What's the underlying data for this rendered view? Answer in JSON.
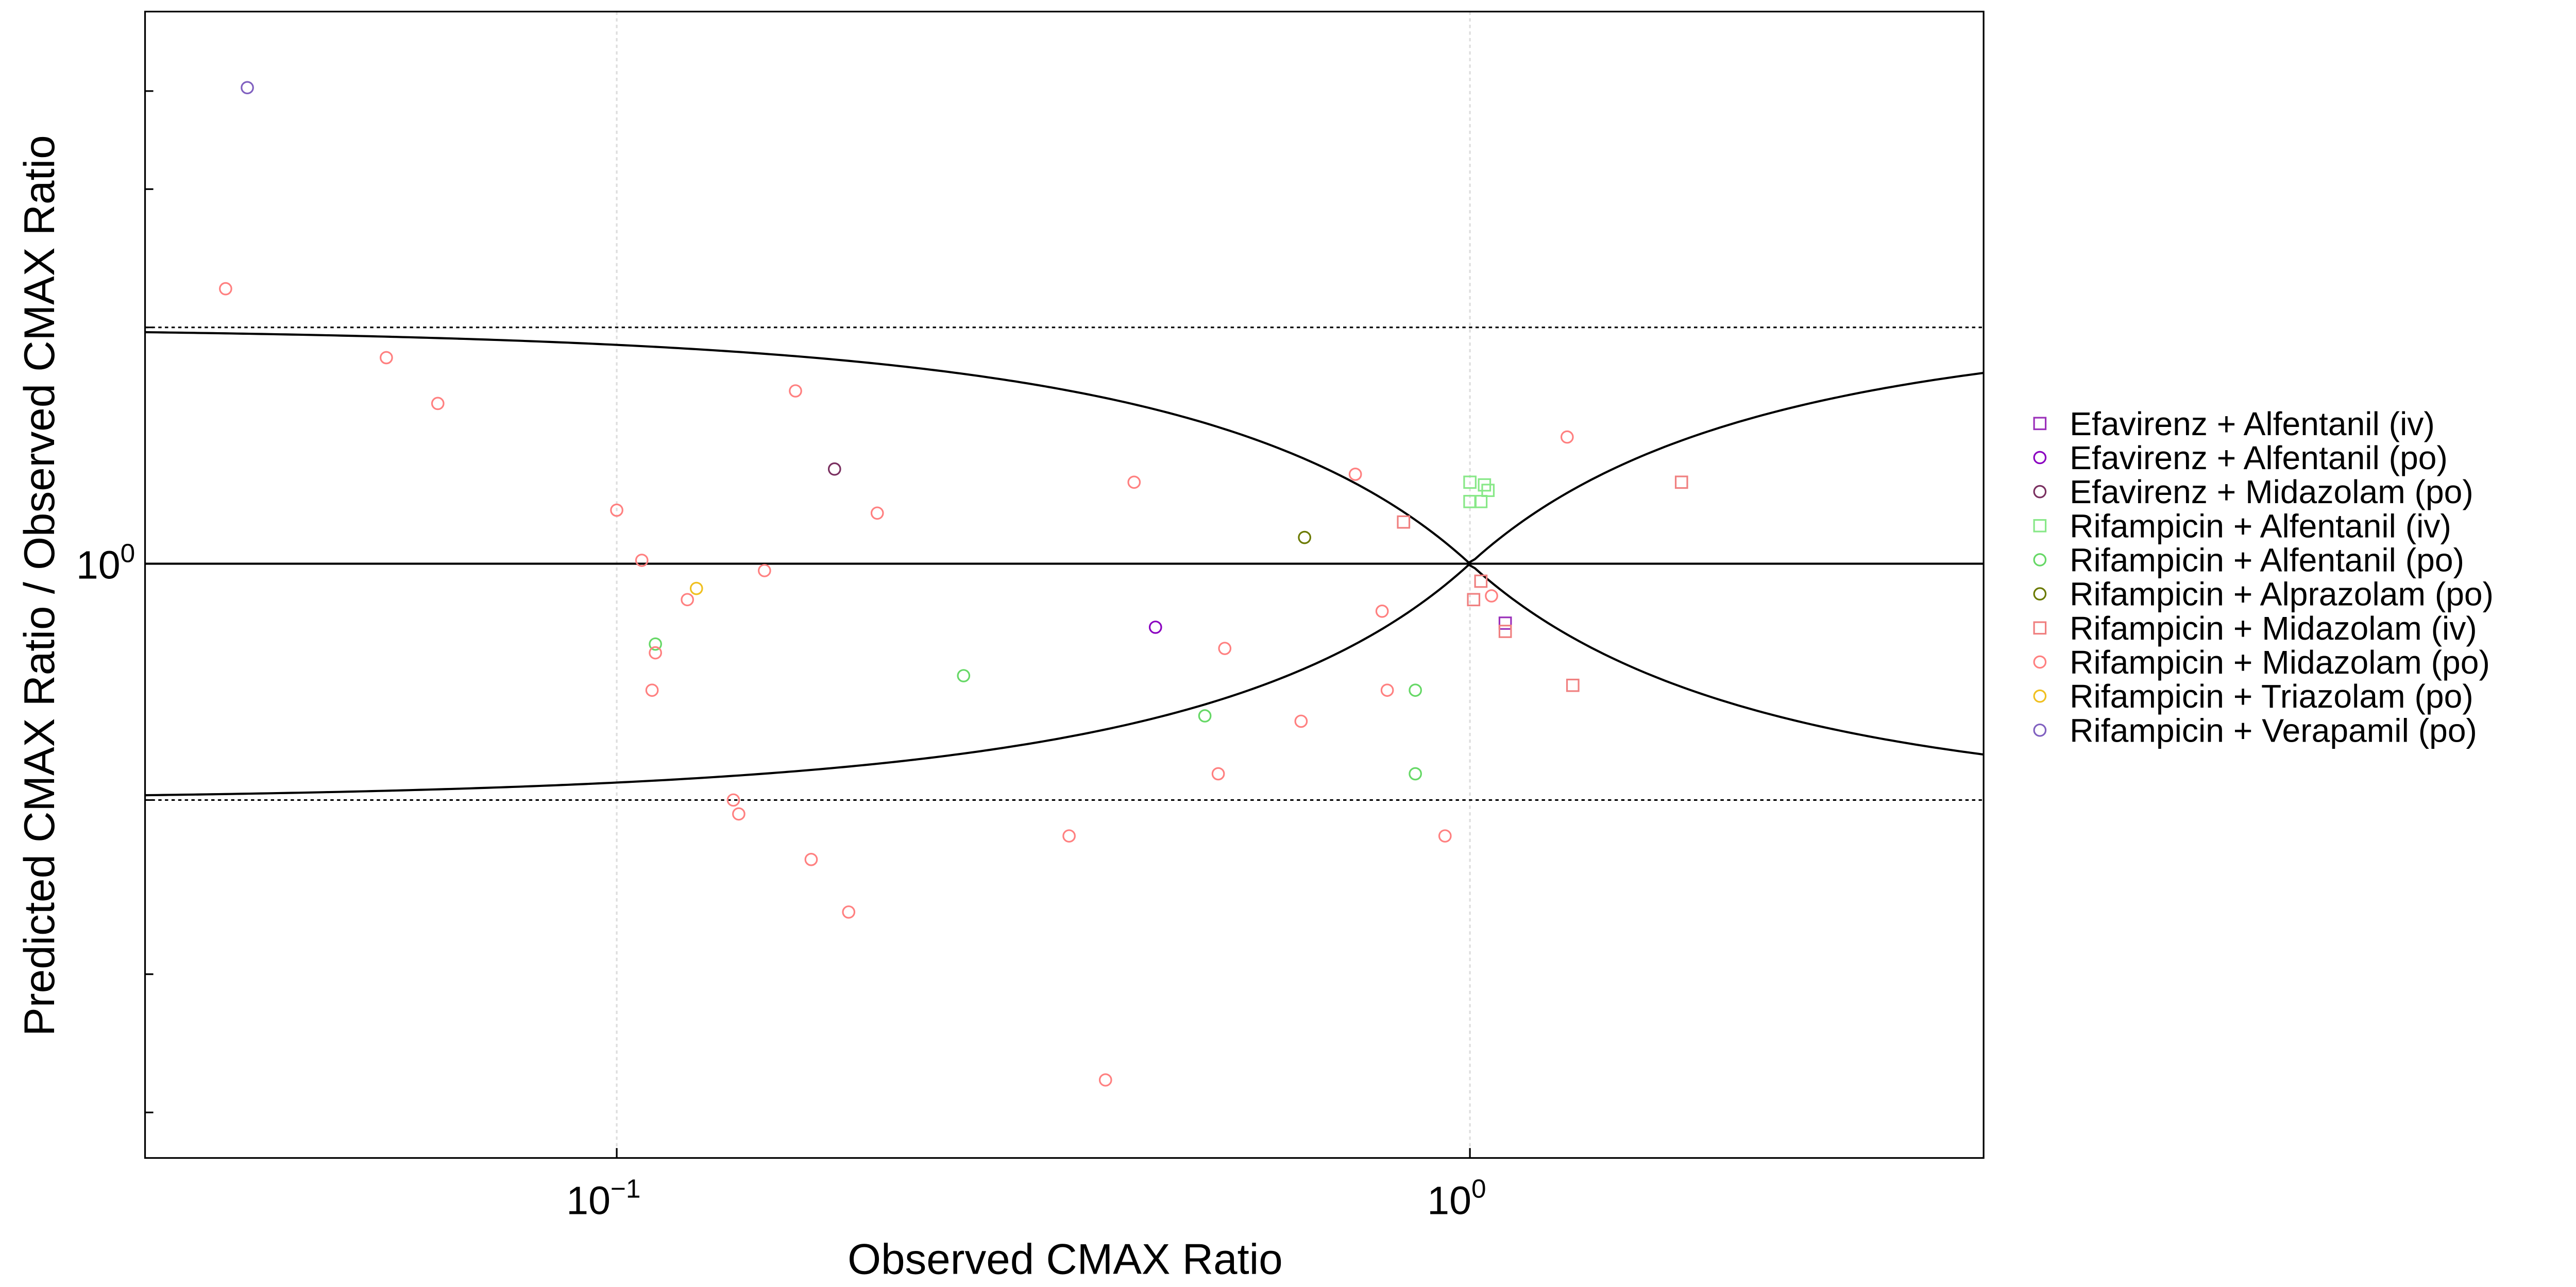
{
  "chart_data": {
    "type": "scatter",
    "x_label": "Observed CMAX Ratio",
    "y_label": "Predicted CMAX Ratio / Observed CMAX Ratio",
    "xscale": "log",
    "yscale": "log",
    "xlim": [
      0.028,
      4
    ],
    "ylim": [
      0.175,
      5.05
    ],
    "xticks": [
      {
        "value": 0.1,
        "label": "10",
        "exponent": "−1"
      },
      {
        "value": 1,
        "label": "10",
        "exponent": "0"
      }
    ],
    "yticks": [
      {
        "value": 1,
        "label": "10",
        "exponent": "0"
      }
    ],
    "y_minor_ticks": [
      0.2,
      0.3,
      0.5,
      2,
      3,
      4
    ],
    "grid": true,
    "hlines": [
      {
        "value": 1,
        "style": "solid"
      },
      {
        "value": 2,
        "style": "dotted"
      },
      {
        "value": 0.5,
        "style": "dotted"
      }
    ],
    "guest_delta": 1,
    "legend": "right",
    "series": [
      {
        "name": "Efavirenz + Alfentanil (iv)",
        "color": "#9b30ba",
        "marker": "square",
        "x": [
          1.1
        ],
        "values": [
          0.84
        ]
      },
      {
        "name": "Efavirenz + Alfentanil (po)",
        "color": "#8a00c0",
        "marker": "circle",
        "x": [
          0.428
        ],
        "values": [
          0.83
        ]
      },
      {
        "name": "Efavirenz + Midazolam (po)",
        "color": "#7a3060",
        "marker": "circle",
        "x": [
          0.18
        ],
        "values": [
          1.32
        ]
      },
      {
        "name": "Rifampicin + Alfentanil (iv)",
        "color": "#88e888",
        "marker": "square",
        "x": [
          1.0,
          1.04,
          1.05,
          1.0,
          1.03
        ],
        "values": [
          1.27,
          1.26,
          1.24,
          1.2,
          1.2
        ]
      },
      {
        "name": "Rifampicin + Alfentanil (po)",
        "color": "#66d866",
        "marker": "circle",
        "x": [
          0.111,
          0.255,
          0.489,
          0.863,
          0.863
        ],
        "values": [
          0.79,
          0.72,
          0.64,
          0.69,
          0.54
        ]
      },
      {
        "name": "Rifampicin + Alprazolam (po)",
        "color": "#6b7a00",
        "marker": "circle",
        "x": [
          0.64
        ],
        "values": [
          1.08
        ]
      },
      {
        "name": "Rifampicin + Midazolam (iv)",
        "color": "#f08080",
        "marker": "square",
        "x": [
          0.836,
          1.01,
          1.03,
          1.1,
          1.32,
          1.77
        ],
        "values": [
          1.13,
          0.9,
          0.95,
          0.82,
          0.7,
          1.27
        ]
      },
      {
        "name": "Rifampicin + Midazolam (po)",
        "color": "#ff8080",
        "marker": "circle",
        "x": [
          0.0348,
          0.0537,
          0.0617,
          0.162,
          0.1,
          0.107,
          0.121,
          0.111,
          0.11,
          0.149,
          0.202,
          0.137,
          0.139,
          0.169,
          0.187,
          0.339,
          0.374,
          0.404,
          0.516,
          0.507,
          0.634,
          0.734,
          0.789,
          0.8,
          0.935,
          1.06,
          1.3
        ],
        "values": [
          2.24,
          1.83,
          1.6,
          1.66,
          1.17,
          1.01,
          0.9,
          0.77,
          0.69,
          0.98,
          1.16,
          0.5,
          0.48,
          0.42,
          0.36,
          0.45,
          0.22,
          1.27,
          0.78,
          0.54,
          0.63,
          1.3,
          0.87,
          0.69,
          0.45,
          0.91,
          1.45
        ]
      },
      {
        "name": "Rifampicin + Triazolam (po)",
        "color": "#f0c020",
        "marker": "circle",
        "x": [
          0.124
        ],
        "values": [
          0.93
        ]
      },
      {
        "name": "Rifampicin + Verapamil (po)",
        "color": "#8060c0",
        "marker": "circle",
        "x": [
          0.0369
        ],
        "values": [
          4.04
        ]
      }
    ]
  }
}
